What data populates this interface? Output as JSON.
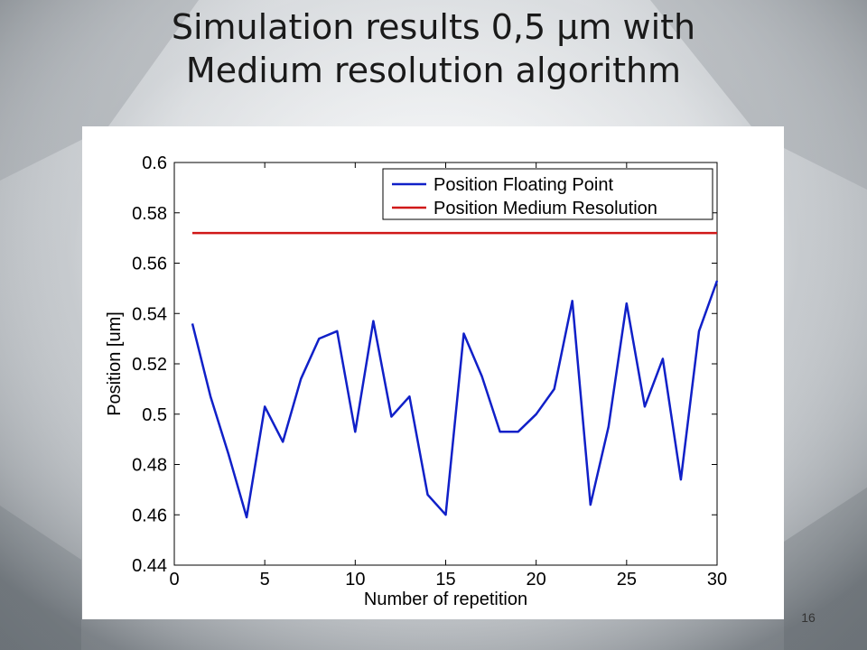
{
  "slide": {
    "title": "Simulation results 0,5 µm with\nMedium resolution algorithm",
    "page_number": "16"
  },
  "chart_data": {
    "type": "line",
    "xlabel": "Number of repetition",
    "ylabel": "Position [um]",
    "xlim": [
      0,
      30
    ],
    "ylim": [
      0.44,
      0.6
    ],
    "xticks": [
      0,
      5,
      10,
      15,
      20,
      25,
      30
    ],
    "yticks": [
      0.44,
      0.46,
      0.48,
      0.5,
      0.52,
      0.54,
      0.56,
      0.58,
      0.6
    ],
    "yticklabels": [
      "0.44",
      "0.46",
      "0.48",
      "0.5",
      "0.52",
      "0.54",
      "0.56",
      "0.58",
      "0.6"
    ],
    "grid": false,
    "legend_position": "top-right",
    "series": [
      {
        "name": "Position Floating Point",
        "color": "#1020c8",
        "x": [
          1,
          2,
          3,
          4,
          5,
          6,
          7,
          8,
          9,
          10,
          11,
          12,
          13,
          14,
          15,
          16,
          17,
          18,
          19,
          20,
          21,
          22,
          23,
          24,
          25,
          26,
          27,
          28,
          29,
          30
        ],
        "values": [
          0.536,
          0.507,
          0.484,
          0.459,
          0.503,
          0.489,
          0.514,
          0.53,
          0.533,
          0.493,
          0.537,
          0.499,
          0.507,
          0.468,
          0.46,
          0.532,
          0.515,
          0.493,
          0.493,
          0.5,
          0.51,
          0.545,
          0.464,
          0.495,
          0.544,
          0.503,
          0.522,
          0.474,
          0.533,
          0.553
        ]
      },
      {
        "name": "Position Medium Resolution",
        "color": "#d01818",
        "x": [
          1,
          30
        ],
        "values": [
          0.572,
          0.572
        ]
      }
    ]
  }
}
